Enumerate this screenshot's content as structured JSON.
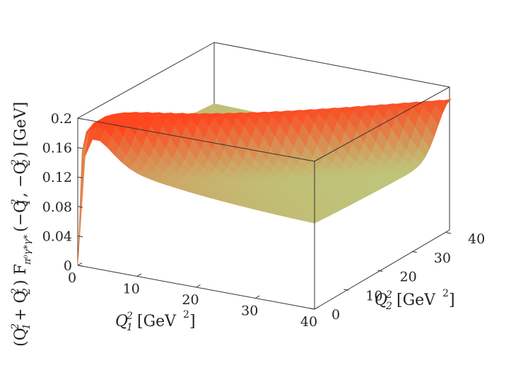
{
  "chart_data": {
    "type": "surface",
    "xlabel": "Q_1^2 [GeV^2]",
    "ylabel": "Q_2^2 [GeV^2]",
    "zlabel": "(Q_1^2 + Q_2^2) F_{π0γ*γ*}(−Q_1^2, −Q_2^2) [GeV]",
    "x_ticks": [
      "0",
      "10",
      "20",
      "30",
      "40"
    ],
    "y_ticks": [
      "0",
      "10",
      "20",
      "30",
      "40"
    ],
    "z_ticks": [
      "0",
      "0.04",
      "0.08",
      "0.12",
      "0.16",
      "0.2"
    ],
    "xlim": [
      0,
      40
    ],
    "ylim": [
      0,
      40
    ],
    "zlim": [
      0,
      0.2
    ],
    "grid": false,
    "colormap": "rainbow",
    "colors": {
      "low": "#8060ff",
      "mid": "#80ffb0",
      "high": "#ff3010"
    }
  }
}
